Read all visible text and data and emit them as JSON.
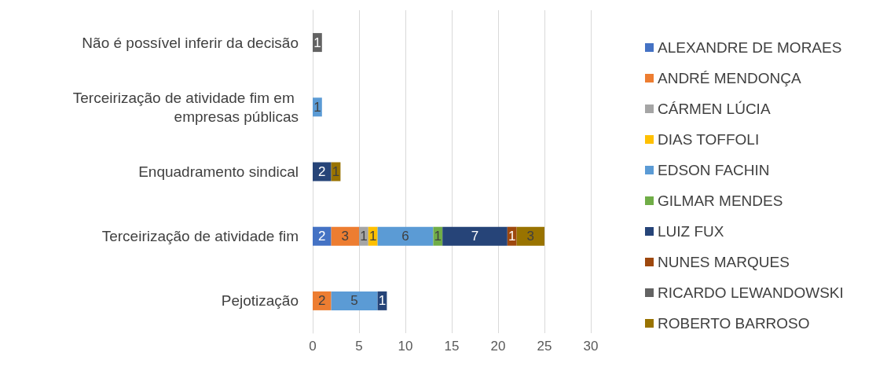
{
  "chart_data": {
    "type": "bar",
    "orientation": "horizontal",
    "stacked": true,
    "data_labels": true,
    "grid": "x",
    "legend": "right",
    "categories": [
      "Não é possível inferir da decisão",
      "Terceirização de atividade fim em empresas públicas",
      "Enquadramento sindical",
      "Terceirização de atividade fim",
      "Pejotização"
    ],
    "xlim": [
      0,
      30
    ],
    "xticks": [
      0,
      5,
      10,
      15,
      20,
      25,
      30
    ],
    "series": [
      {
        "name": "ALEXANDRE DE MORAES",
        "color": "#4472c4",
        "values": [
          null,
          null,
          null,
          2,
          null
        ]
      },
      {
        "name": "ANDRÉ MENDONÇA",
        "color": "#ed7d31",
        "values": [
          null,
          null,
          null,
          3,
          2
        ]
      },
      {
        "name": "CÁRMEN LÚCIA",
        "color": "#a5a5a5",
        "values": [
          null,
          null,
          null,
          1,
          null
        ]
      },
      {
        "name": "DIAS TOFFOLI",
        "color": "#ffc000",
        "values": [
          null,
          null,
          null,
          1,
          null
        ]
      },
      {
        "name": "EDSON FACHIN",
        "color": "#5b9bd5",
        "values": [
          null,
          1,
          null,
          6,
          5
        ]
      },
      {
        "name": "GILMAR MENDES",
        "color": "#70ad47",
        "values": [
          null,
          null,
          null,
          1,
          null
        ]
      },
      {
        "name": "LUIZ FUX",
        "color": "#264478",
        "values": [
          null,
          null,
          2,
          7,
          1
        ]
      },
      {
        "name": "NUNES MARQUES",
        "color": "#9e480e",
        "values": [
          null,
          null,
          null,
          1,
          null
        ]
      },
      {
        "name": "RICARDO LEWANDOWSKI",
        "color": "#636363",
        "values": [
          1,
          null,
          null,
          null,
          null
        ]
      },
      {
        "name": "ROBERTO BARROSO",
        "color": "#997300",
        "values": [
          null,
          null,
          1,
          3,
          null
        ]
      }
    ]
  }
}
